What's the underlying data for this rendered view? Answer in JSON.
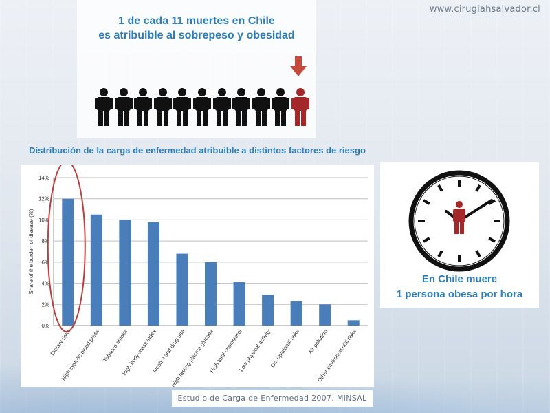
{
  "website": "www.cirugiahsalvador.cl",
  "headline": {
    "line1": "1 de cada 11 muertes en Chile",
    "line2": "es atribuible al sobrepeso y obesidad"
  },
  "people_graphic": {
    "total": 11,
    "highlighted": 1,
    "default_color": "#111111",
    "highlight_color": "#a4282a"
  },
  "subtitle": "Distribución de la carga de enfermedad atribuible a distintos factores de riesgo",
  "clock_text": {
    "line1": "En Chile muere",
    "line2": "1 persona obesa por hora"
  },
  "source": "Estudio de Carga de Enfermedad 2007. MINSAL",
  "colors": {
    "accent": "#2f7db8",
    "bar": "#4a7ebb",
    "highlight_circle": "#b9403f",
    "person_red": "#a4282a"
  },
  "chart_data": {
    "type": "bar",
    "categories": [
      "Dietary risks",
      "High systolic blood press",
      "Tobacco smoke",
      "High body-mass index",
      "Alcohol and drug use",
      "High fasting plasma glucose",
      "High total cholesterol",
      "Low physical activity",
      "Occupational risks",
      "Air pollution",
      "Other environmental risks"
    ],
    "values": [
      12.0,
      10.5,
      10.0,
      9.8,
      6.8,
      6.0,
      4.1,
      2.9,
      2.3,
      2.0,
      0.5
    ],
    "ylabel": "Share of the burden of disease (%)",
    "ylim": [
      0,
      14
    ],
    "yticks": [
      "0%",
      "2%",
      "4%",
      "6%",
      "8%",
      "10%",
      "12%",
      "14%"
    ],
    "grid": true,
    "highlighted_category": "Dietary risks"
  }
}
